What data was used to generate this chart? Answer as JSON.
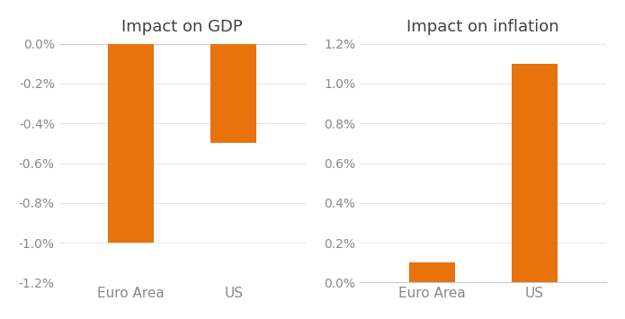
{
  "gdp_title": "Impact on GDP",
  "inflation_title": "Impact on inflation",
  "categories": [
    "Euro Area",
    "US"
  ],
  "gdp_values": [
    -1.0,
    -0.5
  ],
  "inflation_values": [
    0.1,
    1.1
  ],
  "bar_color": "#E8730C",
  "gdp_ylim": [
    -1.2,
    0.0
  ],
  "inflation_ylim": [
    0.0,
    1.2
  ],
  "tick_label_color": "#888888",
  "title_fontsize": 13,
  "tick_fontsize": 10,
  "xlabel_fontsize": 11,
  "bar_width": 0.45,
  "title_color": "#404040"
}
